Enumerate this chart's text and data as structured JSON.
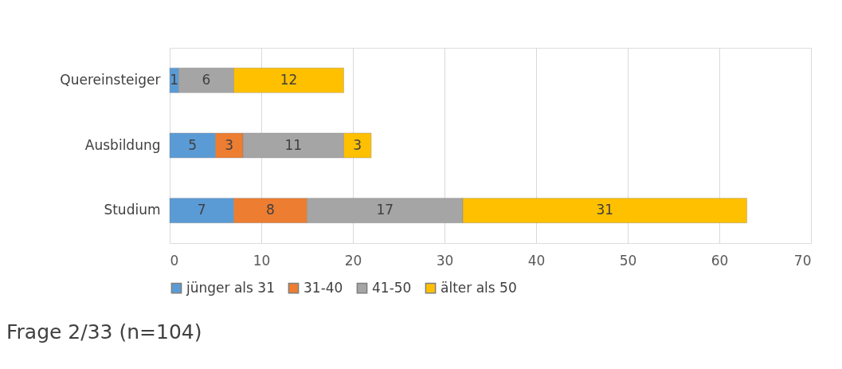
{
  "chart_data": {
    "type": "bar",
    "orientation": "horizontal",
    "stacked": true,
    "categories": [
      "Quereinsteiger",
      "Ausbildung",
      "Studium"
    ],
    "series": [
      {
        "name": "jünger als 31",
        "color": "#5b9bd5",
        "values": [
          1,
          5,
          7
        ]
      },
      {
        "name": "31-40",
        "color": "#ed7d31",
        "values": [
          null,
          3,
          8
        ]
      },
      {
        "name": "41-50",
        "color": "#a5a5a5",
        "values": [
          6,
          11,
          17
        ]
      },
      {
        "name": "älter als 50",
        "color": "#ffc000",
        "values": [
          12,
          3,
          31
        ]
      }
    ],
    "xlim": [
      0,
      70
    ],
    "xticks": [
      0,
      10,
      20,
      30,
      40,
      50,
      60,
      70
    ],
    "grid": "x",
    "legend": "bottom",
    "data_labels": true,
    "annotations": [
      "Frage 2/33 (n=104)"
    ]
  }
}
